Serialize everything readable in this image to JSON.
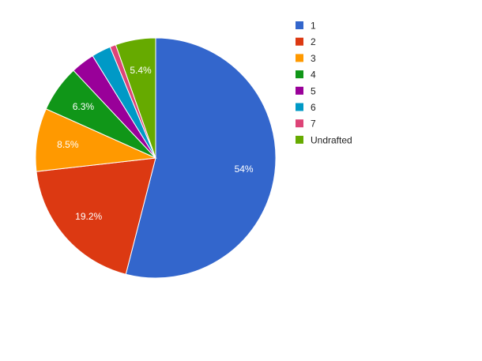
{
  "chart_data": {
    "type": "pie",
    "title": "",
    "legend_position": "right",
    "slices": [
      {
        "name": "1",
        "value": 54.0,
        "color": "#3366cc",
        "label": "54%"
      },
      {
        "name": "2",
        "value": 19.2,
        "color": "#dc3912",
        "label": "19.2%"
      },
      {
        "name": "3",
        "value": 8.5,
        "color": "#ff9900",
        "label": "8.5%"
      },
      {
        "name": "4",
        "value": 6.3,
        "color": "#109618",
        "label": "6.3%"
      },
      {
        "name": "5",
        "value": 3.2,
        "color": "#990099",
        "label": ""
      },
      {
        "name": "6",
        "value": 2.6,
        "color": "#0099c6",
        "label": ""
      },
      {
        "name": "7",
        "value": 0.8,
        "color": "#dd4477",
        "label": ""
      },
      {
        "name": "Undrafted",
        "value": 5.4,
        "color": "#66aa00",
        "label": "5.4%"
      }
    ]
  }
}
